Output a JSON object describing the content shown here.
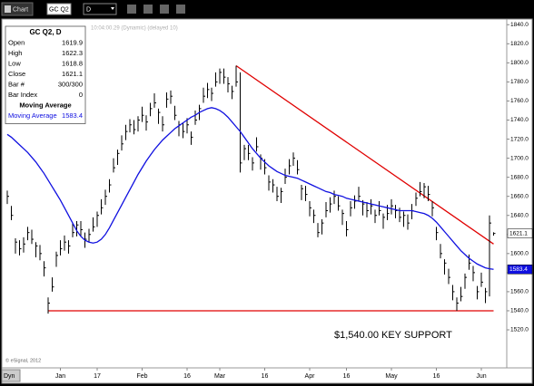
{
  "toolbar": {
    "tab": "Chart",
    "symbol": "GC Q2",
    "interval": "D",
    "mode": "Dyn"
  },
  "chart_data": {
    "type": "ohlc",
    "header": "10:04:00.29 (Dynamic) (delayed 10)",
    "copyright": "© eSignal, 2012",
    "annotation": "$1,540.00 KEY SUPPORT",
    "bar_color": "#000000",
    "categories": [
      null,
      null,
      null,
      null,
      null,
      null,
      null,
      null,
      null,
      null,
      null,
      null,
      null,
      "Jan",
      null,
      null,
      null,
      null,
      null,
      null,
      null,
      null,
      "17",
      null,
      null,
      null,
      null,
      null,
      null,
      null,
      null,
      null,
      null,
      "Feb",
      null,
      null,
      null,
      null,
      null,
      null,
      null,
      null,
      null,
      null,
      "16",
      null,
      null,
      null,
      null,
      null,
      null,
      null,
      "Mar",
      null,
      null,
      null,
      null,
      null,
      null,
      null,
      null,
      null,
      null,
      "16",
      null,
      null,
      null,
      null,
      null,
      null,
      null,
      null,
      null,
      null,
      "Apr",
      null,
      null,
      null,
      null,
      null,
      null,
      null,
      null,
      "16",
      null,
      null,
      null,
      null,
      null,
      null,
      null,
      null,
      null,
      null,
      "May",
      null,
      null,
      null,
      null,
      null,
      null,
      null,
      null,
      null,
      null,
      "16",
      null,
      null,
      null,
      null,
      null,
      null,
      null,
      null,
      null,
      null,
      "Jun",
      null,
      null,
      null
    ],
    "high": [
      1666,
      1650,
      1616,
      1614,
      1617,
      1628,
      1625,
      1612,
      1609,
      1592,
      1554,
      1575,
      1602,
      1614,
      1619,
      1614,
      1632,
      1634,
      1634,
      1622,
      1626,
      1638,
      1644,
      1657,
      1667,
      1678,
      1700,
      1709,
      1724,
      1735,
      1741,
      1740,
      1744,
      1754,
      1745,
      1758,
      1768,
      1752,
      1744,
      1769,
      1771,
      1755,
      1739,
      1737,
      1742,
      1728,
      1750,
      1756,
      1774,
      1779,
      1774,
      1790,
      1794,
      1794,
      1785,
      1776,
      1797,
      1790,
      1714,
      1714,
      1701,
      1722,
      1704,
      1699,
      1682,
      1678,
      1670,
      1669,
      1689,
      1699,
      1706,
      1698,
      1672,
      1671,
      1655,
      1646,
      1632,
      1636,
      1654,
      1659,
      1666,
      1660,
      1646,
      1634,
      1655,
      1661,
      1670,
      1656,
      1654,
      1657,
      1646,
      1655,
      1642,
      1651,
      1657,
      1651,
      1648,
      1644,
      1641,
      1652,
      1664,
      1675,
      1674,
      1671,
      1655,
      1628,
      1610,
      1594,
      1584,
      1567,
      1554,
      1565,
      1579,
      1599,
      1587,
      1566,
      1580,
      1564,
      1640,
      1622.3
    ],
    "low": [
      1652,
      1635,
      1600,
      1598,
      1601,
      1614,
      1610,
      1596,
      1593,
      1576,
      1537,
      1560,
      1586,
      1598,
      1603,
      1600,
      1617,
      1618,
      1618,
      1606,
      1612,
      1623,
      1628,
      1641,
      1651,
      1664,
      1685,
      1693,
      1708,
      1719,
      1727,
      1725,
      1728,
      1738,
      1729,
      1744,
      1753,
      1736,
      1728,
      1753,
      1757,
      1740,
      1723,
      1721,
      1726,
      1714,
      1735,
      1740,
      1758,
      1763,
      1760,
      1775,
      1778,
      1778,
      1769,
      1762,
      1775,
      1685,
      1698,
      1698,
      1687,
      1707,
      1688,
      1683,
      1666,
      1664,
      1655,
      1653,
      1673,
      1683,
      1692,
      1683,
      1656,
      1655,
      1639,
      1632,
      1617,
      1620,
      1638,
      1643,
      1652,
      1645,
      1630,
      1618,
      1639,
      1647,
      1655,
      1640,
      1638,
      1641,
      1632,
      1640,
      1626,
      1635,
      1641,
      1637,
      1633,
      1628,
      1625,
      1636,
      1650,
      1660,
      1658,
      1655,
      1639,
      1614,
      1595,
      1578,
      1568,
      1551,
      1540,
      1550,
      1563,
      1583,
      1571,
      1552,
      1565,
      1548,
      1555,
      1618.8
    ],
    "close": [
      1660,
      1640,
      1612,
      1605,
      1610,
      1622,
      1615,
      1608,
      1600,
      1585,
      1548,
      1565,
      1598,
      1605,
      1612,
      1608,
      1622,
      1630,
      1625,
      1615,
      1620,
      1628,
      1640,
      1648,
      1660,
      1672,
      1690,
      1705,
      1715,
      1728,
      1735,
      1730,
      1740,
      1745,
      1738,
      1752,
      1758,
      1748,
      1735,
      1762,
      1765,
      1745,
      1735,
      1728,
      1735,
      1722,
      1740,
      1752,
      1765,
      1772,
      1768,
      1780,
      1790,
      1785,
      1778,
      1770,
      1780,
      1695,
      1710,
      1705,
      1695,
      1712,
      1700,
      1690,
      1675,
      1672,
      1660,
      1665,
      1680,
      1692,
      1700,
      1688,
      1668,
      1662,
      1648,
      1640,
      1622,
      1632,
      1645,
      1652,
      1660,
      1650,
      1642,
      1625,
      1648,
      1655,
      1660,
      1652,
      1645,
      1650,
      1640,
      1645,
      1638,
      1642,
      1650,
      1645,
      1638,
      1640,
      1632,
      1645,
      1658,
      1665,
      1670,
      1662,
      1648,
      1622,
      1600,
      1590,
      1575,
      1560,
      1548,
      1555,
      1575,
      1590,
      1580,
      1560,
      1570,
      1560,
      1632,
      1621.1
    ],
    "series": [
      {
        "name": "Moving Average",
        "color": "#1010e0",
        "values": [
          1725,
          1722,
          1718,
          1714,
          1710,
          1706,
          1701,
          1696,
          1690,
          1684,
          1677,
          1670,
          1663,
          1656,
          1648,
          1640,
          1632,
          1624,
          1618,
          1614,
          1612,
          1611,
          1612,
          1615,
          1620,
          1627,
          1635,
          1643,
          1651,
          1659,
          1667,
          1675,
          1683,
          1690,
          1697,
          1703,
          1709,
          1714,
          1719,
          1723,
          1727,
          1731,
          1734,
          1737,
          1740,
          1743,
          1745,
          1748,
          1750,
          1752,
          1753,
          1752,
          1750,
          1747,
          1743,
          1738,
          1733,
          1728,
          1722,
          1716,
          1710,
          1705,
          1700,
          1696,
          1692,
          1689,
          1686,
          1684,
          1682,
          1681,
          1680,
          1679,
          1677,
          1675,
          1673,
          1671,
          1669,
          1667,
          1665,
          1664,
          1662,
          1661,
          1660,
          1658,
          1657,
          1656,
          1655,
          1654,
          1653,
          1652,
          1651,
          1650,
          1649,
          1648,
          1647,
          1646,
          1645,
          1645,
          1645,
          1645,
          1644,
          1643,
          1642,
          1640,
          1637,
          1633,
          1628,
          1623,
          1618,
          1613,
          1608,
          1603,
          1599,
          1595,
          1592,
          1589,
          1587,
          1585,
          1584,
          1583.4
        ]
      }
    ],
    "trendlines": [
      {
        "color": "#e00000",
        "from": [
          56,
          1797
        ],
        "to": [
          119,
          1610
        ]
      },
      {
        "color": "#e00000",
        "from": [
          10,
          1540
        ],
        "to": [
          119,
          1540
        ]
      }
    ],
    "ylim": [
      1482,
      1845
    ],
    "yticks": [
      {
        "value": 1520,
        "label": "1520.0"
      },
      {
        "value": 1540,
        "label": "1540.0"
      },
      {
        "value": 1560,
        "label": "1560.0"
      },
      {
        "value": 1580,
        "label": "1580.0"
      },
      {
        "value": 1600,
        "label": "1600.0"
      },
      {
        "value": 1620,
        "label": "1620.0"
      },
      {
        "value": 1640,
        "label": "1640.0"
      },
      {
        "value": 1660,
        "label": "1660.0"
      },
      {
        "value": 1680,
        "label": "1680.0"
      },
      {
        "value": 1700,
        "label": "1700.0"
      },
      {
        "value": 1720,
        "label": "1720.0"
      },
      {
        "value": 1740,
        "label": "1740.0"
      },
      {
        "value": 1760,
        "label": "1760.0"
      },
      {
        "value": 1780,
        "label": "1780.0"
      },
      {
        "value": 1800,
        "label": "1800.0"
      },
      {
        "value": 1820,
        "label": "1820.0"
      },
      {
        "value": 1840,
        "label": "1840.0"
      }
    ],
    "grid": false,
    "info_box": {
      "title": "GC Q2, D",
      "rows": [
        [
          "Open",
          1619.9
        ],
        [
          "High",
          1622.3
        ],
        [
          "Low",
          1618.8
        ],
        [
          "Close",
          1621.1
        ],
        [
          "Bar #",
          "300/300"
        ],
        [
          "Bar Index",
          0
        ]
      ],
      "section": "Moving Average"
    }
  }
}
